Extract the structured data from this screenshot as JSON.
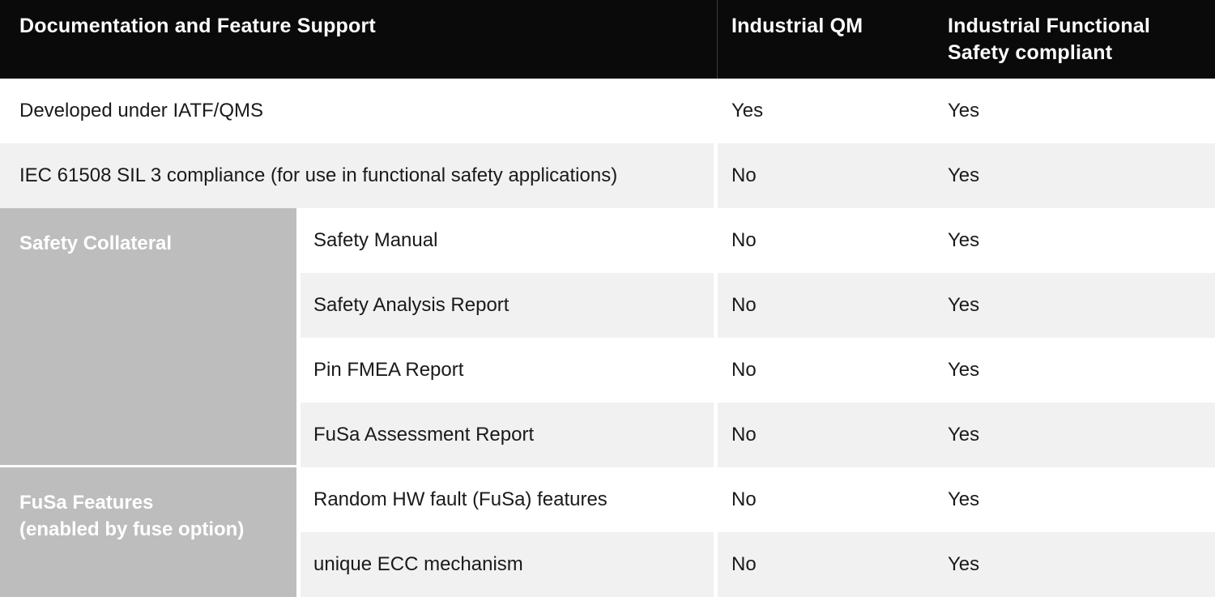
{
  "header": {
    "feature_column": "Documentation and Feature Support",
    "qm_column": "Industrial QM",
    "fusa_column": "Industrial Functional Safety compliant"
  },
  "rows": [
    {
      "label": "Developed under IATF/QMS",
      "industrial_qm": "Yes",
      "industrial_fusa": "Yes"
    },
    {
      "label": "IEC 61508 SIL 3 compliance (for use in functional safety applications)",
      "industrial_qm": "No",
      "industrial_fusa": "Yes"
    },
    {
      "label": "Safety Manual",
      "industrial_qm": "No",
      "industrial_fusa": "Yes"
    },
    {
      "label": "Safety Analysis Report",
      "industrial_qm": "No",
      "industrial_fusa": "Yes"
    },
    {
      "label": "Pin FMEA Report",
      "industrial_qm": "No",
      "industrial_fusa": "Yes"
    },
    {
      "label": "FuSa Assessment Report",
      "industrial_qm": "No",
      "industrial_fusa": "Yes"
    },
    {
      "label": "Random HW fault (FuSa) features",
      "industrial_qm": "No",
      "industrial_fusa": "Yes"
    },
    {
      "label": "unique ECC mechanism",
      "industrial_qm": "No",
      "industrial_fusa": "Yes"
    }
  ],
  "groups": [
    {
      "label_lines": [
        "Safety Collateral",
        ""
      ]
    },
    {
      "label_lines": [
        "FuSa Features",
        "(enabled by fuse option)"
      ]
    }
  ],
  "colors": {
    "header_bg": "#0a0a0a",
    "header_text": "#ffffff",
    "header_divider": "#3d3d3d",
    "stripe_bg": "#f1f1f1",
    "group_bg": "#bdbdbd",
    "group_text": "#ffffff",
    "body_text": "#1a1a1a",
    "page_bg": "#ffffff"
  }
}
